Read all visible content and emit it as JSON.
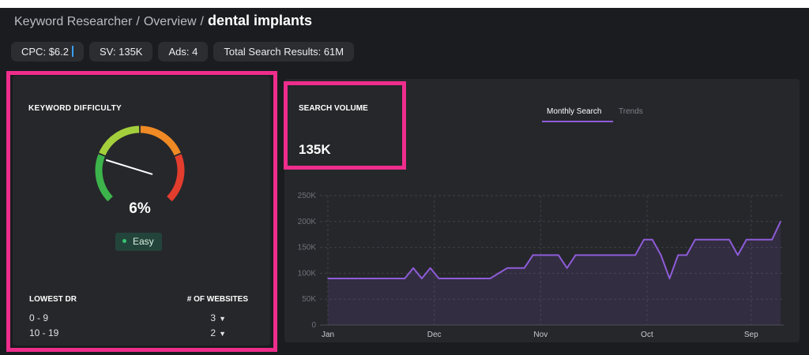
{
  "breadcrumb": {
    "items": [
      "Keyword Researcher",
      "Overview"
    ],
    "separator": "/",
    "current": "dental implants"
  },
  "metrics": [
    {
      "label": "CPC:",
      "value": "$6.2"
    },
    {
      "label": "SV:",
      "value": "135K"
    },
    {
      "label": "Ads:",
      "value": "4"
    },
    {
      "label": "Total Search Results:",
      "value": "61M"
    }
  ],
  "keyword_difficulty": {
    "title": "KEYWORD DIFFICULTY",
    "value": "6%",
    "level": 0.06,
    "badge": "Easy",
    "table_headers": [
      "LOWEST DR",
      "# OF WEBSITES"
    ],
    "rows": [
      {
        "range": "0 - 9",
        "count": "3"
      },
      {
        "range": "10 - 19",
        "count": "2"
      }
    ]
  },
  "search_volume": {
    "title": "SEARCH VOLUME",
    "value": "135K",
    "tabs": [
      "Monthly Search",
      "Trends"
    ],
    "active_tab": "Monthly Search"
  },
  "colors": {
    "highlight": "#ee2d8c",
    "line": "#8e5cd9",
    "gauge": [
      "#3cb44b",
      "#a4cf3c",
      "#f08a24",
      "#e33d2e"
    ]
  },
  "chart_data": {
    "type": "line",
    "x_tick_labels": [
      "Jan",
      "Dec",
      "Nov",
      "Oct",
      "Sep"
    ],
    "y_tick_labels": [
      "0",
      "50K",
      "100K",
      "150K",
      "200K",
      "250K"
    ],
    "ylim": [
      0,
      250000
    ],
    "grid": true,
    "x": [
      0,
      1,
      2,
      3,
      4,
      5,
      6,
      7,
      8,
      9,
      10,
      11,
      12,
      13,
      14,
      15,
      16,
      17,
      18,
      19,
      20,
      21,
      22,
      23,
      24,
      25,
      26,
      27,
      28,
      29,
      30,
      31,
      32,
      33,
      34,
      35,
      36,
      37,
      38,
      39,
      40,
      41,
      42,
      43,
      44,
      45,
      46,
      47,
      48,
      49,
      50,
      51,
      52,
      53
    ],
    "values": [
      90000,
      90000,
      90000,
      90000,
      90000,
      90000,
      90000,
      90000,
      90000,
      90000,
      110000,
      90000,
      110000,
      90000,
      90000,
      90000,
      90000,
      90000,
      90000,
      90000,
      100000,
      110000,
      110000,
      110000,
      135000,
      135000,
      135000,
      135000,
      110000,
      135000,
      135000,
      135000,
      135000,
      135000,
      135000,
      135000,
      135000,
      165000,
      165000,
      135000,
      90000,
      135000,
      135000,
      165000,
      165000,
      165000,
      165000,
      165000,
      135000,
      165000,
      165000,
      165000,
      165000,
      200000
    ]
  }
}
